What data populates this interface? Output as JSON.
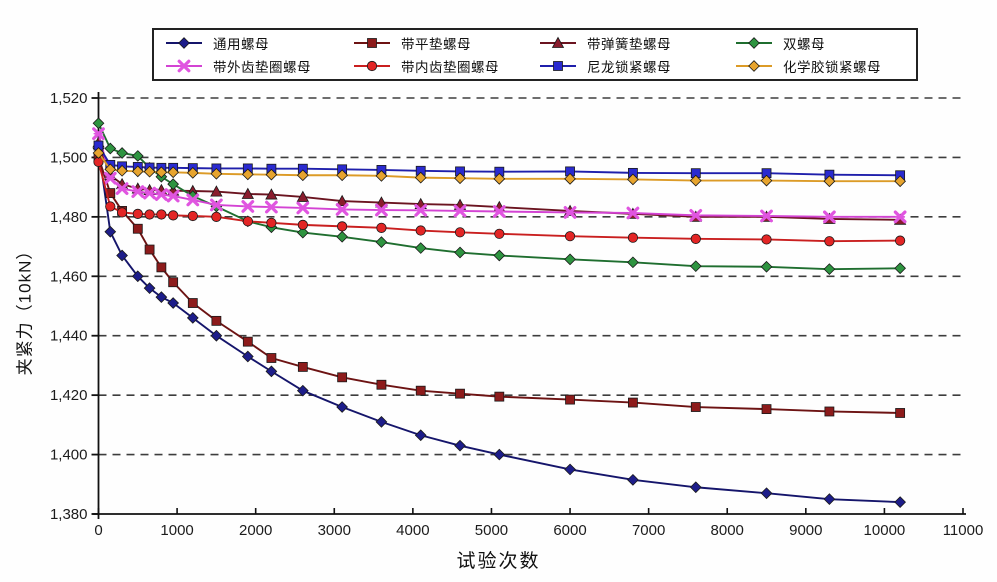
{
  "chart_data": {
    "type": "line",
    "title": "",
    "xlabel": "试验次数",
    "ylabel": "夹紧力（10kN）",
    "xlim": [
      0,
      11000
    ],
    "ylim": [
      1380,
      1520
    ],
    "x_ticks": [
      0,
      1000,
      2000,
      3000,
      4000,
      5000,
      6000,
      7000,
      8000,
      9000,
      10000,
      11000
    ],
    "x_tick_labels": [
      "0",
      "1000",
      "2000",
      "3000",
      "4000",
      "5000",
      "6000",
      "7000",
      "8000",
      "9000",
      "10000",
      "11000"
    ],
    "y_ticks": [
      1520,
      1500,
      1480,
      1460,
      1440,
      1420,
      1400,
      1380
    ],
    "y_tick_labels": [
      "1,520",
      "1,500",
      "1,480",
      "1,460",
      "1,440",
      "1,420",
      "1,400",
      "1,380"
    ],
    "grid": "horizontal-dashed",
    "legend_position": "top",
    "x": [
      0,
      150,
      300,
      500,
      650,
      800,
      950,
      1200,
      1500,
      1900,
      2200,
      2600,
      3100,
      3600,
      4100,
      4600,
      5100,
      6000,
      6800,
      7600,
      8500,
      9300,
      10200
    ],
    "series": [
      {
        "name": "通用螺母",
        "key": "general-nut",
        "marker": "diamond",
        "color": "#1d1d8a",
        "line_color": "#15156b",
        "values": [
          1503,
          1475,
          1467,
          1460,
          1456,
          1453,
          1451,
          1446,
          1440,
          1433,
          1428,
          1421.5,
          1416,
          1411,
          1406.5,
          1403,
          1400,
          1395,
          1391.5,
          1389,
          1387,
          1385,
          1384
        ]
      },
      {
        "name": "带平垫螺母",
        "key": "flat-washer-nut",
        "marker": "square",
        "color": "#8d1b1b",
        "line_color": "#6d1313",
        "values": [
          1500,
          1488,
          1482,
          1476,
          1469,
          1463,
          1458,
          1451,
          1445,
          1438,
          1432.5,
          1429.5,
          1426,
          1423.5,
          1421.5,
          1420.5,
          1419.5,
          1418.5,
          1417.5,
          1416,
          1415.3,
          1414.5,
          1414
        ]
      },
      {
        "name": "带弹簧垫螺母",
        "key": "spring-washer-nut",
        "marker": "triangle",
        "color": "#8a1c2d",
        "line_color": "#6b1420",
        "values": [
          1505,
          1494,
          1491,
          1489.5,
          1489,
          1489,
          1488.8,
          1488.7,
          1488.5,
          1487.7,
          1487.5,
          1486.7,
          1485.3,
          1484.8,
          1484.3,
          1484,
          1483.3,
          1482,
          1481,
          1480,
          1480,
          1479.3,
          1479
        ]
      },
      {
        "name": "双螺母",
        "key": "double-nut",
        "marker": "diamond",
        "color": "#2e9440",
        "line_color": "#1f6e2f",
        "values": [
          1511.5,
          1503,
          1501.5,
          1500.5,
          1496.5,
          1493.5,
          1491,
          1487,
          1483.5,
          1478.5,
          1476.5,
          1474.7,
          1473.3,
          1471.5,
          1469.5,
          1468,
          1467,
          1465.7,
          1464.7,
          1463.4,
          1463.2,
          1462.4,
          1462.7
        ]
      },
      {
        "name": "带外齿垫圈螺母",
        "key": "external-tooth-washer-nut",
        "marker": "xcross",
        "color": "#e055e0",
        "line_color": "#d343d3",
        "values": [
          1508,
          1493,
          1489.5,
          1488.5,
          1488,
          1487.5,
          1487,
          1485.7,
          1484,
          1483.5,
          1483.3,
          1483,
          1482.5,
          1482.3,
          1482.2,
          1482,
          1481.8,
          1481.5,
          1481.3,
          1480.5,
          1480.3,
          1480,
          1480
        ]
      },
      {
        "name": "带内齿垫圈螺母",
        "key": "internal-tooth-washer-nut",
        "marker": "circle",
        "color": "#e32525",
        "line_color": "#c91f1f",
        "values": [
          1498.5,
          1483.5,
          1481.5,
          1481,
          1480.8,
          1480.8,
          1480.5,
          1480.3,
          1480,
          1478.5,
          1478,
          1477.3,
          1476.8,
          1476.3,
          1475.4,
          1474.8,
          1474.3,
          1473.5,
          1473,
          1472.6,
          1472.4,
          1471.8,
          1472
        ]
      },
      {
        "name": "尼龙锁紧螺母",
        "key": "nylon-lock-nut",
        "marker": "square",
        "color": "#2a2ad0",
        "line_color": "#1f1fab",
        "values": [
          1504,
          1497.5,
          1497,
          1496.8,
          1496.6,
          1496.5,
          1496.5,
          1496.4,
          1496.3,
          1496.3,
          1496.2,
          1496.2,
          1496,
          1495.8,
          1495.5,
          1495.3,
          1495.2,
          1495.3,
          1494.8,
          1494.7,
          1494.7,
          1494.2,
          1494
        ]
      },
      {
        "name": "化学胶锁紧螺母",
        "key": "adhesive-lock-nut",
        "marker": "diamond",
        "color": "#e7a42e",
        "line_color": "#dc9b27",
        "values": [
          1501.5,
          1496,
          1495.5,
          1495.3,
          1495.2,
          1495,
          1495,
          1494.8,
          1494.5,
          1494.3,
          1494.2,
          1494,
          1494,
          1493.8,
          1493.2,
          1493,
          1492.8,
          1492.8,
          1492.6,
          1492.2,
          1492.2,
          1492,
          1492
        ]
      }
    ]
  }
}
